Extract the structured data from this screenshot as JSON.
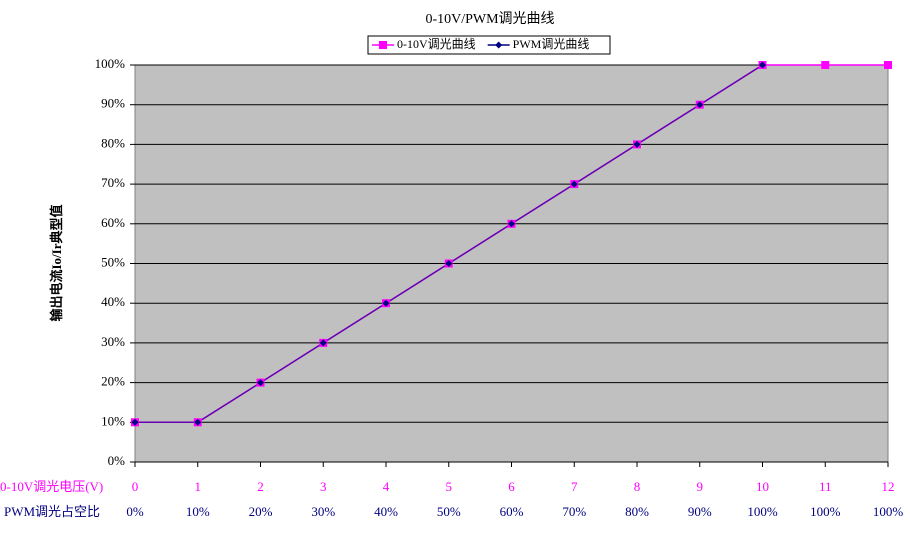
{
  "chart_data": {
    "type": "line",
    "title": "0-10V/PWM调光曲线",
    "y_label": "输出电流Io/Ir典型值",
    "categories": [
      "0",
      "1",
      "2",
      "3",
      "4",
      "5",
      "6",
      "7",
      "8",
      "9",
      "10",
      "11",
      "12"
    ],
    "categories2": [
      "0%",
      "10%",
      "20%",
      "30%",
      "40%",
      "50%",
      "60%",
      "70%",
      "80%",
      "90%",
      "100%",
      "100%",
      "100%"
    ],
    "category_row_titles": [
      "0-10V调光电压(V)",
      "PWM调光占空比"
    ],
    "category_row_colors": [
      "#ff00ff",
      "#000080"
    ],
    "series": [
      {
        "name": "0-10V调光曲线",
        "color": "#ff00ff",
        "marker": "square",
        "values": [
          10,
          10,
          20,
          30,
          40,
          50,
          60,
          70,
          80,
          90,
          100,
          100,
          100
        ]
      },
      {
        "name": "PWM调光曲线",
        "color": "#000080",
        "marker": "diamond",
        "values": [
          10,
          10,
          20,
          30,
          40,
          50,
          60,
          70,
          80,
          90,
          100,
          null,
          null
        ]
      }
    ],
    "ylim": [
      0,
      100
    ],
    "yticks": [
      {
        "value": 0,
        "label": "0%"
      },
      {
        "value": 10,
        "label": "10%"
      },
      {
        "value": 20,
        "label": "20%"
      },
      {
        "value": 30,
        "label": "30%"
      },
      {
        "value": 40,
        "label": "40%"
      },
      {
        "value": 50,
        "label": "50%"
      },
      {
        "value": 60,
        "label": "60%"
      },
      {
        "value": 70,
        "label": "70%"
      },
      {
        "value": 80,
        "label": "80%"
      },
      {
        "value": 90,
        "label": "90%"
      },
      {
        "value": 100,
        "label": "100%"
      }
    ],
    "grid": true,
    "plot_background": "#c0c0c0",
    "legend": "top"
  }
}
